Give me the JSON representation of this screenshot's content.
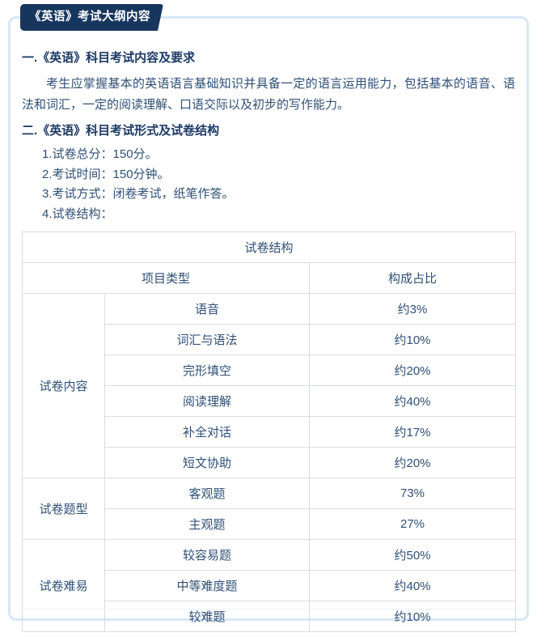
{
  "badge": {
    "label": "《英语》考试大纲内容"
  },
  "content": {
    "heading_1": "一.《英语》科目考试内容及要求",
    "paragraph_1": "考生应掌握基本的英语语言基础知识并具备一定的语言运用能力，包括基本的语音、语法和词汇，一定的阅读理解、口语交际以及初步的写作能力。",
    "heading_2": "二.《英语》科目考试形式及试卷结构",
    "list": {
      "item_1": "1.试卷总分：150分。",
      "item_2": "2.考试时间：150分钟。",
      "item_3": "3.考试方式：闭卷考试，纸笔作答。",
      "item_4": "4.试卷结构："
    }
  },
  "table": {
    "caption": "试卷结构",
    "headers": {
      "item_type": "项目类型",
      "proportion": "构成占比"
    },
    "groups": [
      {
        "label": "试卷内容",
        "rows": [
          [
            "语音",
            "约3%"
          ],
          [
            "词汇与语法",
            "约10%"
          ],
          [
            "完形填空",
            "约20%"
          ],
          [
            "阅读理解",
            "约40%"
          ],
          [
            "补全对话",
            "约17%"
          ],
          [
            "短文协助",
            "约20%"
          ]
        ]
      },
      {
        "label": "试卷题型",
        "rows": [
          [
            "客观题",
            "73%"
          ],
          [
            "主观题",
            "27%"
          ]
        ]
      },
      {
        "label": "试卷难易",
        "rows": [
          [
            "较容易题",
            "约50%"
          ],
          [
            "中等难度题",
            "约40%"
          ],
          [
            "较难题",
            "约10%"
          ]
        ]
      }
    ]
  },
  "colors": {
    "badge_background": "#17365d",
    "heading_text": "#1d3a66",
    "body_text": "#2f5078",
    "card_border": "#d7e7f6",
    "table_border": "#d9dce2",
    "page_background": "#ffffff"
  }
}
